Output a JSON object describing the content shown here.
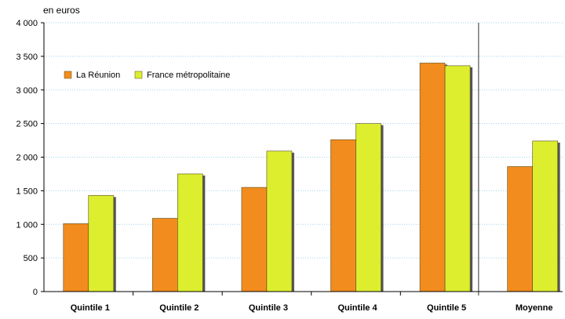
{
  "chart_data": {
    "type": "bar",
    "unit_label": "en euros",
    "categories": [
      "Quintile 1",
      "Quintile 2",
      "Quintile 3",
      "Quintile 4",
      "Quintile 5",
      "Moyenne"
    ],
    "series": [
      {
        "name": "La Réunion",
        "color": "#f28c1e",
        "values": [
          1010,
          1090,
          1550,
          2260,
          3400,
          1860
        ]
      },
      {
        "name": "France métropolitaine",
        "color": "#dcee2e",
        "values": [
          1430,
          1750,
          2090,
          2500,
          3360,
          2240
        ]
      }
    ],
    "ylim": [
      0,
      4000
    ],
    "yticks": [
      0,
      500,
      1000,
      1500,
      2000,
      2500,
      3000,
      3500,
      4000
    ],
    "ytick_labels": [
      "0",
      "500",
      "1 000",
      "1 500",
      "2 000",
      "2 500",
      "3 000",
      "3 500",
      "4 000"
    ],
    "grid": true,
    "legend_position": "top-left",
    "separator_before": "Moyenne"
  }
}
